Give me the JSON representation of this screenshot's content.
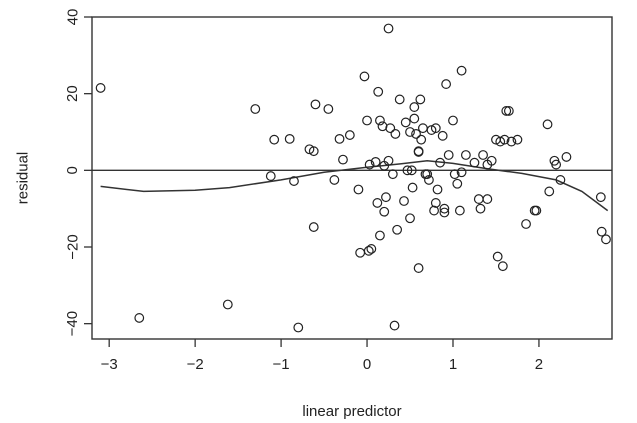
{
  "chart_data": {
    "type": "scatter",
    "title": "",
    "xlabel": "linear predictor",
    "ylabel": "residual",
    "xlim": [
      -3.2,
      2.85
    ],
    "ylim": [
      -44,
      40
    ],
    "xticks": [
      -3,
      -2,
      -1,
      0,
      1,
      2
    ],
    "xtick_labels": [
      "−3",
      "−2",
      "−1",
      "0",
      "1",
      "2"
    ],
    "yticks": [
      -40,
      -20,
      0,
      20,
      40
    ],
    "ytick_labels": [
      "−40",
      "−20",
      "0",
      "20",
      "40"
    ],
    "reference_line_y": 0,
    "grid": false,
    "legend": "none",
    "points": [
      [
        -3.1,
        21.5
      ],
      [
        -2.65,
        -38.5
      ],
      [
        -1.62,
        -35
      ],
      [
        -1.3,
        16
      ],
      [
        -1.12,
        -1.5
      ],
      [
        -1.08,
        8
      ],
      [
        -0.9,
        8.2
      ],
      [
        -0.85,
        -2.8
      ],
      [
        -0.8,
        -41
      ],
      [
        -0.67,
        5.5
      ],
      [
        -0.62,
        5
      ],
      [
        -0.62,
        -14.8
      ],
      [
        -0.6,
        17.2
      ],
      [
        -0.45,
        16
      ],
      [
        -0.38,
        -2.5
      ],
      [
        -0.32,
        8.2
      ],
      [
        -0.28,
        2.8
      ],
      [
        -0.2,
        9.2
      ],
      [
        -0.1,
        -5
      ],
      [
        -0.08,
        -21.5
      ],
      [
        -0.03,
        24.5
      ],
      [
        0.0,
        13
      ],
      [
        0.02,
        -21
      ],
      [
        0.03,
        1.5
      ],
      [
        0.05,
        -20.5
      ],
      [
        0.1,
        2.2
      ],
      [
        0.12,
        -8.5
      ],
      [
        0.13,
        20.5
      ],
      [
        0.15,
        -17
      ],
      [
        0.15,
        13
      ],
      [
        0.18,
        11.5
      ],
      [
        0.2,
        1.2
      ],
      [
        0.2,
        -10.8
      ],
      [
        0.22,
        -7
      ],
      [
        0.25,
        2.5
      ],
      [
        0.25,
        37
      ],
      [
        0.27,
        11
      ],
      [
        0.3,
        -1
      ],
      [
        0.32,
        -40.5
      ],
      [
        0.33,
        9.5
      ],
      [
        0.35,
        -15.5
      ],
      [
        0.38,
        18.5
      ],
      [
        0.43,
        -8
      ],
      [
        0.45,
        12.5
      ],
      [
        0.47,
        0
      ],
      [
        0.5,
        -12.5
      ],
      [
        0.5,
        10
      ],
      [
        0.52,
        0
      ],
      [
        0.53,
        -4.5
      ],
      [
        0.55,
        13.5
      ],
      [
        0.55,
        16.5
      ],
      [
        0.57,
        9.5
      ],
      [
        0.6,
        5
      ],
      [
        0.6,
        4.8
      ],
      [
        0.6,
        -25.5
      ],
      [
        0.62,
        18.5
      ],
      [
        0.63,
        8
      ],
      [
        0.65,
        11
      ],
      [
        0.68,
        -1
      ],
      [
        0.7,
        -1
      ],
      [
        0.72,
        -2.5
      ],
      [
        0.75,
        10.5
      ],
      [
        0.78,
        -10.5
      ],
      [
        0.8,
        11
      ],
      [
        0.8,
        -8.5
      ],
      [
        0.82,
        -5
      ],
      [
        0.85,
        2
      ],
      [
        0.88,
        9
      ],
      [
        0.9,
        -10
      ],
      [
        0.9,
        -11
      ],
      [
        0.92,
        22.5
      ],
      [
        0.95,
        4
      ],
      [
        1.0,
        13
      ],
      [
        1.02,
        -1
      ],
      [
        1.05,
        -3.5
      ],
      [
        1.08,
        -10.5
      ],
      [
        1.1,
        -0.5
      ],
      [
        1.1,
        26
      ],
      [
        1.15,
        4
      ],
      [
        1.25,
        2
      ],
      [
        1.3,
        -7.5
      ],
      [
        1.32,
        -10
      ],
      [
        1.35,
        4
      ],
      [
        1.4,
        1.5
      ],
      [
        1.4,
        -7.5
      ],
      [
        1.45,
        2.5
      ],
      [
        1.5,
        8
      ],
      [
        1.52,
        -22.5
      ],
      [
        1.55,
        7.5
      ],
      [
        1.58,
        -25
      ],
      [
        1.6,
        8
      ],
      [
        1.62,
        15.5
      ],
      [
        1.65,
        15.5
      ],
      [
        1.68,
        7.5
      ],
      [
        1.75,
        8
      ],
      [
        1.85,
        -14
      ],
      [
        1.95,
        -10.5
      ],
      [
        1.97,
        -10.5
      ],
      [
        2.1,
        12
      ],
      [
        2.12,
        -5.5
      ],
      [
        2.18,
        2.5
      ],
      [
        2.2,
        1.5
      ],
      [
        2.25,
        -2.5
      ],
      [
        2.32,
        3.5
      ],
      [
        2.72,
        -7
      ],
      [
        2.73,
        -16
      ],
      [
        2.78,
        -18
      ]
    ],
    "smooth_line": [
      [
        -3.1,
        -4.2
      ],
      [
        -2.6,
        -5.5
      ],
      [
        -2.0,
        -5.2
      ],
      [
        -1.6,
        -4.5
      ],
      [
        -1.0,
        -2.5
      ],
      [
        -0.5,
        -0.5
      ],
      [
        0.0,
        0.8
      ],
      [
        0.4,
        1.7
      ],
      [
        0.7,
        2.5
      ],
      [
        1.0,
        1.8
      ],
      [
        1.4,
        0.4
      ],
      [
        1.8,
        -0.8
      ],
      [
        2.2,
        -2.5
      ],
      [
        2.5,
        -5.5
      ],
      [
        2.8,
        -10.5
      ]
    ]
  }
}
